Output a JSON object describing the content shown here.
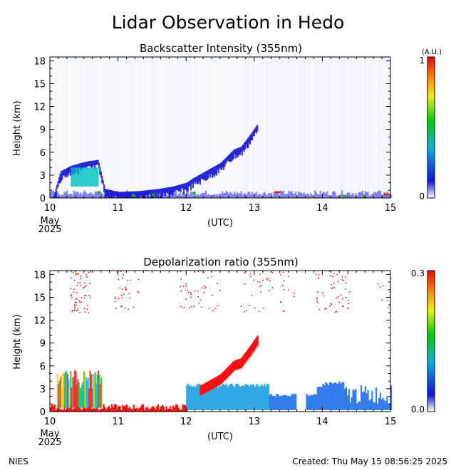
{
  "title": "Lidar Observation in Hedo",
  "footer": {
    "left": "NIES",
    "right": "Created: Thu May 15 08:56:25 2025"
  },
  "colors": {
    "scale": [
      "#ffffff",
      "#1010e0",
      "#00b0e0",
      "#00d000",
      "#f0f000",
      "#ff8000",
      "#ff0000"
    ]
  },
  "chart_data": [
    {
      "type": "heatmap",
      "title": "Backscatter Intensity (355nm)",
      "ylabel": "Height (km)",
      "xlabel": "(UTC)",
      "x_ticks": [
        "10",
        "11",
        "12",
        "13",
        "14",
        "15"
      ],
      "x_sub_label": [
        "May",
        "2025"
      ],
      "y_ticks": [
        "0",
        "3",
        "6",
        "9",
        "12",
        "15",
        "18"
      ],
      "xlim": [
        10,
        15
      ],
      "ylim": [
        0,
        18.5
      ],
      "colorbar": {
        "unit": "(A.U.)",
        "min_label": "0",
        "max_label": "1",
        "range": [
          0,
          1
        ]
      },
      "layer_top_km": [
        [
          10.05,
          0.3
        ],
        [
          10.15,
          3.5
        ],
        [
          10.3,
          4.2
        ],
        [
          10.45,
          4.6
        ],
        [
          10.55,
          4.8
        ],
        [
          10.7,
          5.0
        ],
        [
          10.8,
          1.2
        ],
        [
          11.0,
          0.8
        ],
        [
          11.3,
          0.9
        ],
        [
          11.6,
          1.2
        ],
        [
          11.8,
          1.5
        ],
        [
          12.0,
          2.0
        ],
        [
          12.1,
          2.6
        ],
        [
          12.3,
          3.6
        ],
        [
          12.5,
          4.6
        ],
        [
          12.7,
          6.4
        ],
        [
          12.8,
          6.7
        ],
        [
          12.95,
          8.5
        ],
        [
          13.05,
          9.8
        ]
      ]
    },
    {
      "type": "heatmap",
      "title": "Depolarization ratio (355nm)",
      "ylabel": "Height (km)",
      "xlabel": "(UTC)",
      "x_ticks": [
        "10",
        "11",
        "12",
        "13",
        "14",
        "15"
      ],
      "x_sub_label": [
        "May",
        "2025"
      ],
      "y_ticks": [
        "0",
        "3",
        "6",
        "9",
        "12",
        "15",
        "18"
      ],
      "xlim": [
        10,
        15
      ],
      "ylim": [
        0,
        18.5
      ],
      "colorbar": {
        "unit": "",
        "min_label": "0.0",
        "max_label": "0.3",
        "range": [
          0,
          0.3
        ]
      }
    }
  ]
}
